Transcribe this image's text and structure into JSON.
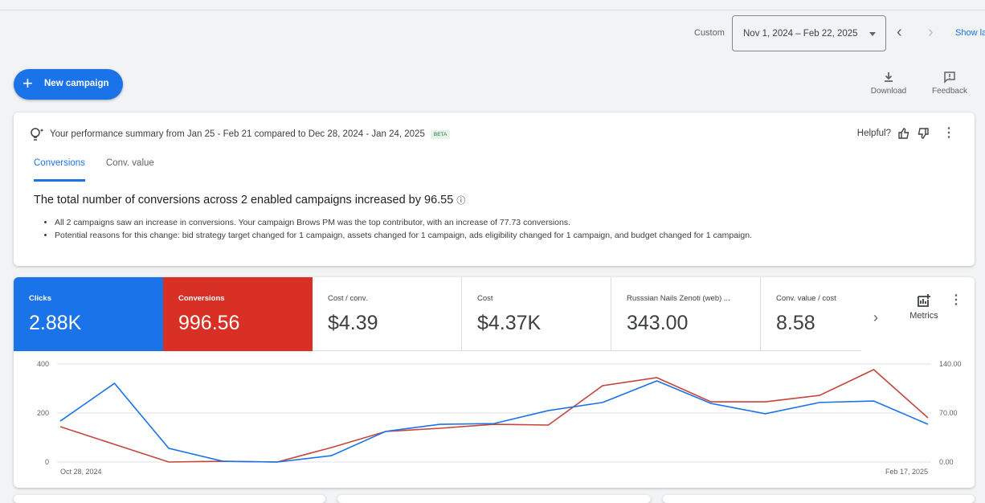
{
  "header": {
    "range_label": "Custom",
    "date_range": "Nov 1, 2024 – Feb 22, 2025",
    "show_link": "Show la",
    "new_campaign": "New campaign",
    "download": "Download",
    "feedback": "Feedback"
  },
  "summary": {
    "title": "Your performance summary from Jan 25 - Feb 21 compared to Dec 28, 2024 - Jan 24, 2025",
    "badge": "BETA",
    "helpful": "Helpful?",
    "tabs": [
      {
        "label": "Conversions",
        "active": true
      },
      {
        "label": "Conv. value",
        "active": false
      }
    ],
    "headline": "The total number of conversions across 2 enabled campaigns increased by 96.55",
    "bullets": [
      "All 2 campaigns saw an increase in conversions. Your campaign Brows PM was the top contributor, with an increase of 77.73 conversions.",
      "Potential reasons for this change: bid strategy target changed for 1 campaign, assets changed for 1 campaign, ads eligibility changed for 1 campaign, and budget changed for 1 campaign."
    ]
  },
  "metrics": [
    {
      "label": "Clicks",
      "value": "2.88K",
      "color": "#1a73e8"
    },
    {
      "label": "Conversions",
      "value": "996.56",
      "color": "#d93025"
    },
    {
      "label": "Cost / conv.",
      "value": "$4.39"
    },
    {
      "label": "Cost",
      "value": "$4.37K"
    },
    {
      "label": "Russsian Nails Zenoti (web) ...",
      "value": "343.00"
    },
    {
      "label": "Conv. value / cost",
      "value": "8.58"
    }
  ],
  "metrics_button": "Metrics",
  "chart_data": {
    "type": "line",
    "x_labels": [
      "Oct 28, 2024",
      "Feb 17, 2025"
    ],
    "y_left": {
      "ticks": [
        "0",
        "200",
        "400"
      ],
      "range": [
        0,
        400
      ]
    },
    "y_right": {
      "ticks": [
        "0.00",
        "70.00",
        "140.00"
      ],
      "range": [
        0,
        140
      ]
    },
    "grid": true,
    "series": [
      {
        "name": "Clicks",
        "axis": "left",
        "color": "#1a73e8",
        "values": [
          167,
          321,
          56,
          3,
          0,
          26,
          125,
          154,
          157,
          210,
          243,
          331,
          239,
          197,
          243,
          249,
          154
        ]
      },
      {
        "name": "Conversions",
        "axis": "right",
        "color": "#c5453a",
        "values": [
          50.5,
          25.2,
          0,
          1.1,
          0,
          20.7,
          43.6,
          48.2,
          53.9,
          52.8,
          109,
          120.5,
          86,
          86,
          95.2,
          132,
          63.1
        ]
      }
    ]
  }
}
